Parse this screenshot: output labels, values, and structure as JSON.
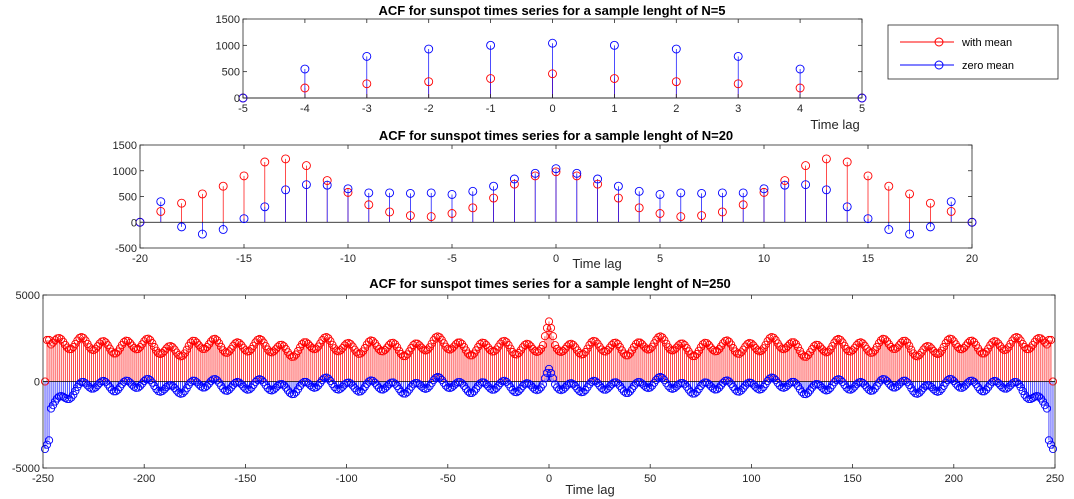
{
  "colors": {
    "with_mean": "#ff0000",
    "zero_mean": "#0000ff",
    "axes": "#262626"
  },
  "legend": {
    "placement": "top-right",
    "entries": [
      {
        "label": "with mean",
        "color": "#ff0000"
      },
      {
        "label": "zero mean",
        "color": "#0000ff"
      }
    ]
  },
  "chart_data": [
    {
      "type": "stem",
      "title": "ACF for sunspot times series for a sample lenght of N=5",
      "xlabel": "Time lag",
      "ylabel": "",
      "xlim": [
        -5,
        5
      ],
      "ylim": [
        0,
        1500
      ],
      "xticks": [
        -5,
        -4,
        -3,
        -2,
        -1,
        0,
        1,
        2,
        3,
        4,
        5
      ],
      "yticks": [
        0,
        500,
        1000,
        1500
      ],
      "grid": false,
      "x": [
        -5,
        -4,
        -3,
        -2,
        -1,
        0,
        1,
        2,
        3,
        4,
        5
      ],
      "series": [
        {
          "name": "with mean",
          "values": [
            0,
            190,
            270,
            310,
            370,
            460,
            370,
            310,
            270,
            190,
            0
          ]
        },
        {
          "name": "zero mean",
          "values": [
            0,
            550,
            790,
            930,
            1000,
            1040,
            1000,
            930,
            790,
            550,
            0
          ]
        }
      ]
    },
    {
      "type": "stem",
      "title": "ACF for sunspot times series for a sample lenght of N=20",
      "xlabel": "Time lag",
      "ylabel": "",
      "xlim": [
        -20,
        20
      ],
      "ylim": [
        -500,
        1500
      ],
      "xticks": [
        -20,
        -15,
        -10,
        -5,
        0,
        5,
        10,
        15,
        20
      ],
      "yticks": [
        -500,
        0,
        500,
        1000,
        1500
      ],
      "grid": false,
      "x": [
        -20,
        -19,
        -18,
        -17,
        -16,
        -15,
        -14,
        -13,
        -12,
        -11,
        -10,
        -9,
        -8,
        -7,
        -6,
        -5,
        -4,
        -3,
        -2,
        -1,
        0,
        1,
        2,
        3,
        4,
        5,
        6,
        7,
        8,
        9,
        10,
        11,
        12,
        13,
        14,
        15,
        16,
        17,
        18,
        19,
        20
      ],
      "series": [
        {
          "name": "with mean",
          "values": [
            0,
            210,
            370,
            550,
            700,
            900,
            1170,
            1230,
            1100,
            810,
            580,
            340,
            200,
            130,
            110,
            170,
            280,
            470,
            740,
            900,
            980,
            900,
            740,
            470,
            280,
            170,
            110,
            130,
            200,
            340,
            580,
            810,
            1100,
            1230,
            1170,
            900,
            700,
            550,
            370,
            210,
            0
          ]
        },
        {
          "name": "zero mean",
          "values": [
            0,
            400,
            -90,
            -230,
            -140,
            70,
            300,
            630,
            730,
            720,
            650,
            570,
            570,
            560,
            570,
            540,
            600,
            700,
            840,
            950,
            1040,
            950,
            840,
            700,
            600,
            540,
            570,
            560,
            570,
            570,
            650,
            720,
            730,
            630,
            300,
            70,
            -140,
            -230,
            -90,
            400,
            0
          ]
        }
      ]
    },
    {
      "type": "stem",
      "title": "ACF for sunspot times series for a sample lenght of N=250",
      "xlabel": "Time lag",
      "ylabel": "",
      "xlim": [
        -250,
        250
      ],
      "ylim": [
        -5000,
        5000
      ],
      "xticks": [
        -250,
        -200,
        -150,
        -100,
        -50,
        0,
        50,
        100,
        150,
        200,
        250
      ],
      "yticks": [
        -5000,
        0,
        5000
      ],
      "grid": false,
      "x_range": [
        -249,
        249
      ],
      "series": [
        {
          "name": "with mean",
          "description": "oscillating positive ACF, baseline ~1800-2300, peak ~3100 at lag 0"
        },
        {
          "name": "zero mean",
          "description": "oscillating ACF around 0, range ~-1500 to ~700, dips to ~-3800 near lag ±249"
        }
      ]
    }
  ]
}
